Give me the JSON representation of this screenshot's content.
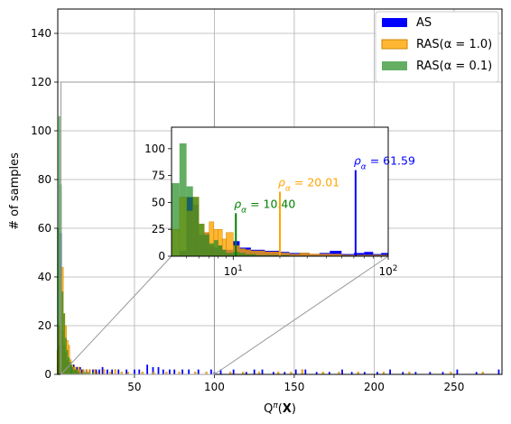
{
  "chart_data": {
    "type": "bar",
    "xlabel": "Q^π(X)",
    "ylabel": "# of samples",
    "xlim": [
      2,
      280
    ],
    "ylim": [
      0,
      150
    ],
    "grid": true,
    "legend_placement": "top-right",
    "x_ticks": [
      "50",
      "100",
      "150",
      "200",
      "250"
    ],
    "y_ticks": [
      "0",
      "20",
      "40",
      "60",
      "80",
      "100",
      "120",
      "140"
    ],
    "colors": {
      "AS": "#0000ff",
      "RAS1": "#ffa500",
      "RAS01": "#228b22"
    },
    "series": [
      {
        "name": "AS",
        "key": "AS",
        "points": [
          {
            "x": 2,
            "y": 4
          },
          {
            "x": 3,
            "y": 12
          },
          {
            "x": 4,
            "y": 58
          },
          {
            "x": 5,
            "y": 18
          },
          {
            "x": 6,
            "y": 12
          },
          {
            "x": 7,
            "y": 9
          },
          {
            "x": 8,
            "y": 6
          },
          {
            "x": 9,
            "y": 5
          },
          {
            "x": 10,
            "y": 4
          },
          {
            "x": 11,
            "y": 3
          },
          {
            "x": 12,
            "y": 4
          },
          {
            "x": 13,
            "y": 2
          },
          {
            "x": 14,
            "y": 3
          },
          {
            "x": 15,
            "y": 2
          },
          {
            "x": 16,
            "y": 3
          },
          {
            "x": 17,
            "y": 2
          },
          {
            "x": 18,
            "y": 2
          },
          {
            "x": 20,
            "y": 2
          },
          {
            "x": 22,
            "y": 2
          },
          {
            "x": 24,
            "y": 2
          },
          {
            "x": 26,
            "y": 2
          },
          {
            "x": 28,
            "y": 2
          },
          {
            "x": 30,
            "y": 3
          },
          {
            "x": 33,
            "y": 2
          },
          {
            "x": 36,
            "y": 2
          },
          {
            "x": 40,
            "y": 2
          },
          {
            "x": 45,
            "y": 2
          },
          {
            "x": 50,
            "y": 2
          },
          {
            "x": 53,
            "y": 2
          },
          {
            "x": 58,
            "y": 4
          },
          {
            "x": 61.59,
            "y": 3
          },
          {
            "x": 65,
            "y": 3
          },
          {
            "x": 68,
            "y": 2
          },
          {
            "x": 72,
            "y": 2
          },
          {
            "x": 75,
            "y": 2
          },
          {
            "x": 80,
            "y": 2
          },
          {
            "x": 84,
            "y": 2
          },
          {
            "x": 90,
            "y": 2
          },
          {
            "x": 98,
            "y": 2
          },
          {
            "x": 100,
            "y": 1
          },
          {
            "x": 104,
            "y": 2
          },
          {
            "x": 112,
            "y": 2
          },
          {
            "x": 120,
            "y": 1
          },
          {
            "x": 125,
            "y": 2
          },
          {
            "x": 130,
            "y": 2
          },
          {
            "x": 137,
            "y": 1
          },
          {
            "x": 144,
            "y": 1
          },
          {
            "x": 151,
            "y": 2
          },
          {
            "x": 157,
            "y": 2
          },
          {
            "x": 164,
            "y": 1
          },
          {
            "x": 172,
            "y": 1
          },
          {
            "x": 180,
            "y": 2
          },
          {
            "x": 186,
            "y": 1
          },
          {
            "x": 194,
            "y": 1
          },
          {
            "x": 202,
            "y": 1
          },
          {
            "x": 210,
            "y": 2
          },
          {
            "x": 218,
            "y": 1
          },
          {
            "x": 226,
            "y": 1
          },
          {
            "x": 235,
            "y": 1
          },
          {
            "x": 243,
            "y": 1
          },
          {
            "x": 252,
            "y": 2
          },
          {
            "x": 264,
            "y": 1
          },
          {
            "x": 278,
            "y": 2
          }
        ]
      },
      {
        "name": "RAS(α = 1.0)",
        "key": "RAS1",
        "points": [
          {
            "x": 2,
            "y": 10
          },
          {
            "x": 3,
            "y": 20
          },
          {
            "x": 4,
            "y": 40
          },
          {
            "x": 5,
            "y": 44
          },
          {
            "x": 6,
            "y": 25
          },
          {
            "x": 7,
            "y": 20
          },
          {
            "x": 8,
            "y": 14
          },
          {
            "x": 9,
            "y": 12
          },
          {
            "x": 10,
            "y": 6
          },
          {
            "x": 11,
            "y": 4
          },
          {
            "x": 12,
            "y": 3
          },
          {
            "x": 13,
            "y": 3
          },
          {
            "x": 14,
            "y": 2
          },
          {
            "x": 15,
            "y": 3
          },
          {
            "x": 16,
            "y": 2
          },
          {
            "x": 18,
            "y": 2
          },
          {
            "x": 20.01,
            "y": 2
          },
          {
            "x": 22,
            "y": 2
          },
          {
            "x": 25,
            "y": 2
          },
          {
            "x": 27,
            "y": 1
          },
          {
            "x": 31,
            "y": 2
          },
          {
            "x": 35,
            "y": 1
          },
          {
            "x": 38,
            "y": 2
          },
          {
            "x": 42,
            "y": 1
          },
          {
            "x": 46,
            "y": 1
          },
          {
            "x": 55,
            "y": 1
          },
          {
            "x": 62,
            "y": 1
          },
          {
            "x": 70,
            "y": 1
          },
          {
            "x": 78,
            "y": 1
          },
          {
            "x": 88,
            "y": 1
          },
          {
            "x": 95,
            "y": 1
          },
          {
            "x": 110,
            "y": 1
          },
          {
            "x": 118,
            "y": 1
          },
          {
            "x": 128,
            "y": 1
          },
          {
            "x": 140,
            "y": 1
          },
          {
            "x": 148,
            "y": 1
          },
          {
            "x": 155,
            "y": 2
          },
          {
            "x": 168,
            "y": 1
          },
          {
            "x": 178,
            "y": 1
          },
          {
            "x": 190,
            "y": 1
          },
          {
            "x": 206,
            "y": 1
          },
          {
            "x": 222,
            "y": 1
          },
          {
            "x": 248,
            "y": 1
          },
          {
            "x": 268,
            "y": 1
          }
        ]
      },
      {
        "name": "RAS(α = 0.1)",
        "key": "RAS01",
        "points": [
          {
            "x": 2,
            "y": 60
          },
          {
            "x": 3,
            "y": 106
          },
          {
            "x": 4,
            "y": 78
          },
          {
            "x": 5,
            "y": 34
          },
          {
            "x": 6,
            "y": 25
          },
          {
            "x": 7,
            "y": 15
          },
          {
            "x": 8,
            "y": 10
          },
          {
            "x": 9,
            "y": 7
          },
          {
            "x": 10,
            "y": 5
          },
          {
            "x": 10.4,
            "y": 4
          },
          {
            "x": 11,
            "y": 3
          },
          {
            "x": 12,
            "y": 2
          },
          {
            "x": 13,
            "y": 2
          },
          {
            "x": 14,
            "y": 2
          },
          {
            "x": 15,
            "y": 1
          },
          {
            "x": 17,
            "y": 1
          },
          {
            "x": 19,
            "y": 1
          },
          {
            "x": 21,
            "y": 1
          },
          {
            "x": 24,
            "y": 1
          }
        ]
      }
    ],
    "inset": {
      "x_scale": "log",
      "xlim": [
        4,
        100
      ],
      "ylim": [
        0,
        120
      ],
      "x_ticks": [
        {
          "value": 10,
          "label": "10^1"
        },
        {
          "value": 100,
          "label": "10^2"
        }
      ],
      "y_ticks": [
        "0",
        "25",
        "50",
        "75",
        "100"
      ],
      "bins": [
        4,
        4.5,
        5,
        5.5,
        6,
        6.5,
        7,
        7.5,
        8,
        8.5,
        9,
        10,
        11,
        12,
        13,
        14,
        16,
        18,
        20,
        23,
        27,
        31,
        36,
        42,
        50,
        60,
        70,
        80,
        90,
        100
      ],
      "AS_counts": [
        0,
        5,
        55,
        48,
        20,
        22,
        10,
        8,
        10,
        6,
        6,
        14,
        8,
        8,
        6,
        6,
        5,
        5,
        4,
        3,
        3,
        2,
        3,
        5,
        2,
        3,
        4,
        2,
        3
      ],
      "RAS1_counts": [
        25,
        55,
        42,
        55,
        30,
        22,
        32,
        25,
        25,
        16,
        22,
        10,
        7,
        6,
        5,
        5,
        4,
        4,
        3,
        2,
        3,
        2,
        2,
        2,
        1,
        1,
        1,
        1,
        1
      ],
      "RAS01_counts": [
        68,
        105,
        65,
        55,
        30,
        20,
        12,
        15,
        10,
        6,
        3,
        4,
        3,
        2,
        2,
        1,
        1,
        1,
        1,
        0,
        0,
        0,
        0,
        0,
        0,
        0,
        0,
        0,
        0
      ],
      "markers": [
        {
          "key": "RAS01",
          "value": 10.4,
          "height": 40,
          "label": "ρ_α = 10.40",
          "color": "#008000"
        },
        {
          "key": "RAS1",
          "value": 20.01,
          "height": 60,
          "label": "ρ_α = 20.01",
          "color": "#ffa500"
        },
        {
          "key": "AS",
          "value": 61.59,
          "height": 80,
          "label": "ρ_α = 61.59",
          "color": "#0000ff"
        }
      ]
    }
  }
}
